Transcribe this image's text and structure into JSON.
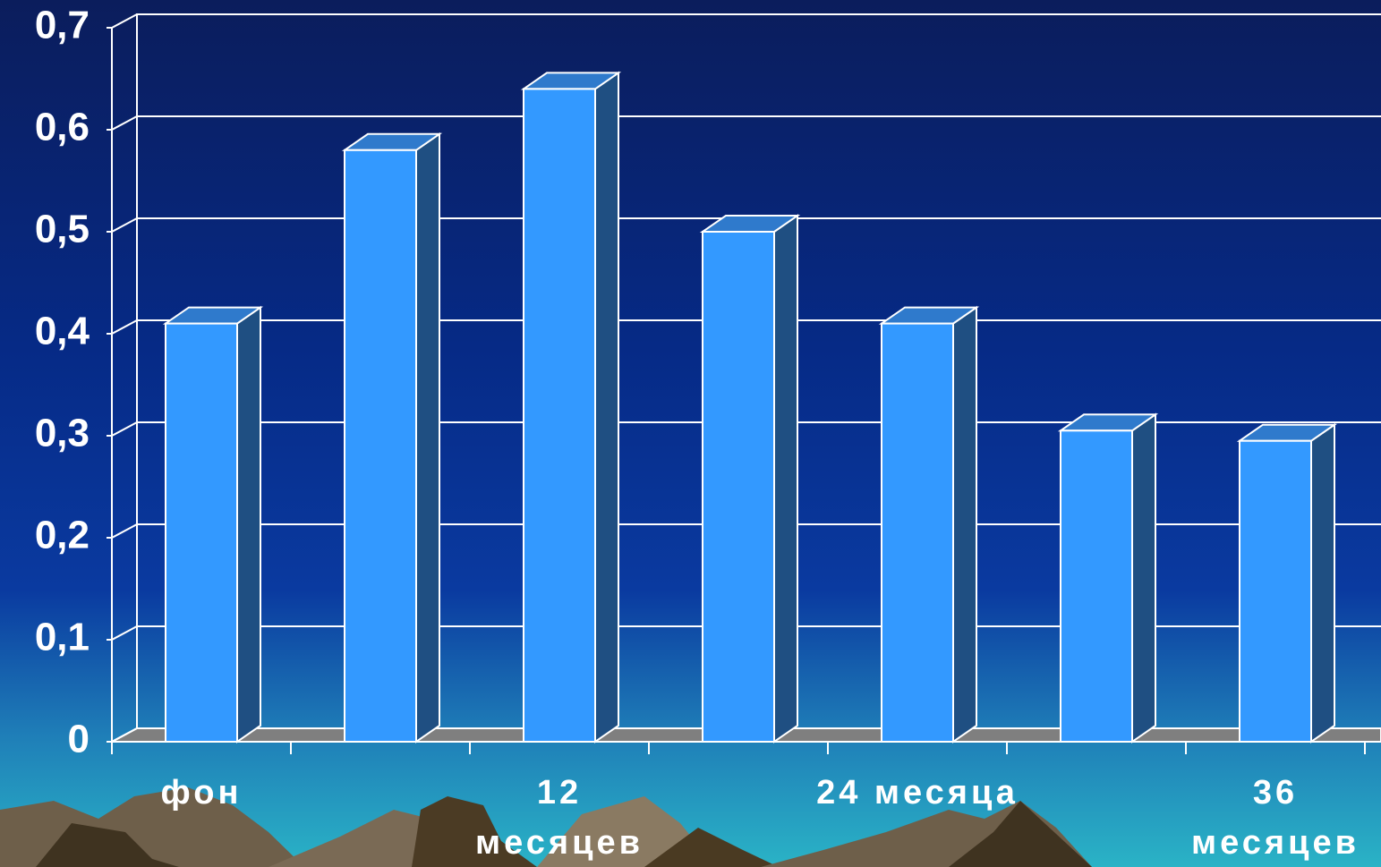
{
  "chart_data": {
    "type": "bar3d",
    "categories": [
      "фон",
      null,
      "12 месяцев",
      null,
      "24 месяца",
      null,
      "36 месяцев"
    ],
    "values": [
      0.41,
      0.58,
      0.64,
      0.5,
      0.41,
      0.305,
      0.295
    ],
    "color": "#3399ff",
    "ylim": [
      0,
      0.7
    ],
    "yticks": [
      0,
      {
        "value": 0.1,
        "label": "0,1"
      },
      {
        "value": 0.2,
        "label": "0,2"
      },
      {
        "value": 0.3,
        "label": "0,3"
      },
      {
        "value": 0.4,
        "label": "0,4"
      },
      {
        "value": 0.5,
        "label": "0,5"
      },
      {
        "value": 0.6,
        "label": "0,6"
      },
      {
        "value": 0.7,
        "label": "0,7"
      }
    ],
    "grid": true
  }
}
